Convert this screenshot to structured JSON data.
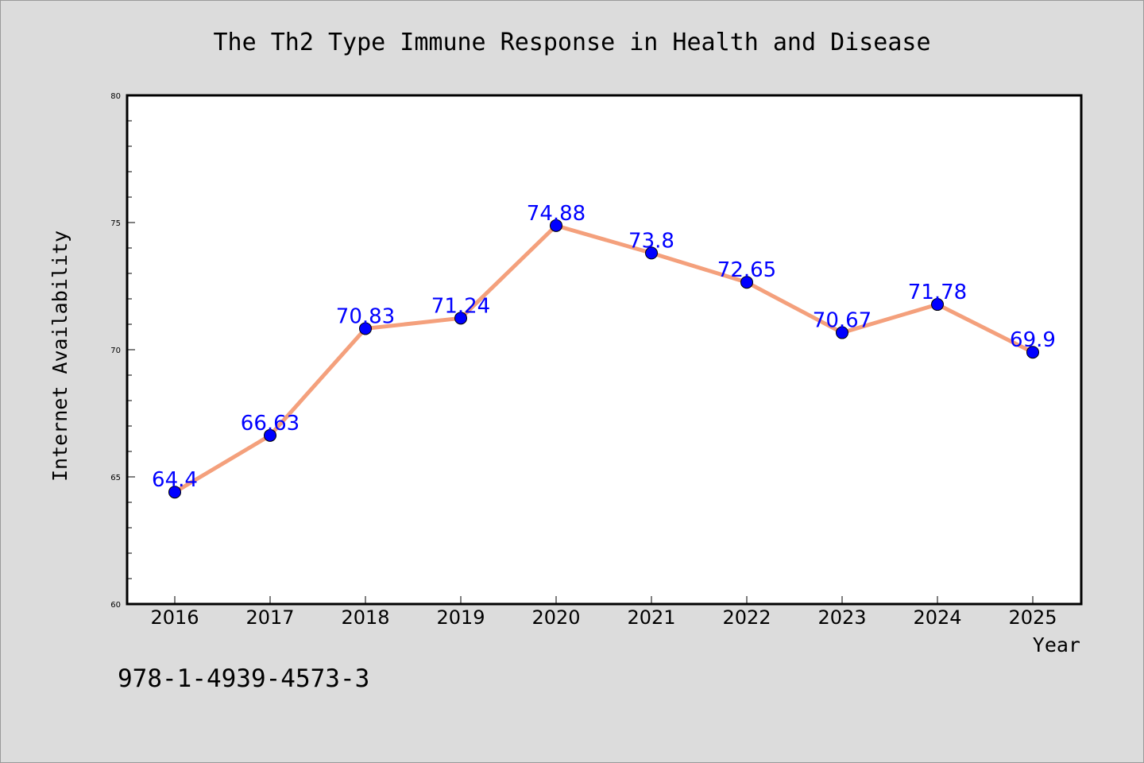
{
  "chart_data": {
    "type": "line",
    "title": "The Th2 Type Immune Response in Health and Disease",
    "xlabel": "Year",
    "ylabel": "Internet Availability",
    "categories": [
      "2016",
      "2017",
      "2018",
      "2019",
      "2020",
      "2021",
      "2022",
      "2023",
      "2024",
      "2025"
    ],
    "series": [
      {
        "values": [
          64.4,
          66.63,
          70.83,
          71.24,
          74.88,
          73.8,
          72.65,
          70.67,
          71.78,
          69.9
        ],
        "data_labels": [
          "64.4",
          "66.63",
          "70.83",
          "71.24",
          "74.88",
          "73.8",
          "72.65",
          "70.67",
          "71.78",
          "69.9"
        ],
        "line_color": "#f4a07c",
        "marker_color": "#0000ff"
      }
    ],
    "ylim": [
      60,
      80
    ],
    "yticks": [
      60,
      65,
      70,
      75,
      80
    ],
    "ytick_labels": [
      "60",
      "65",
      "70",
      "75",
      "80"
    ],
    "grid": false,
    "legend": "none"
  },
  "footer": {
    "isbn": "978-1-4939-4573-3"
  },
  "colors": {
    "page_background": "#dcdcdc",
    "plot_background": "#ffffff",
    "data_label": "#0000ff"
  }
}
